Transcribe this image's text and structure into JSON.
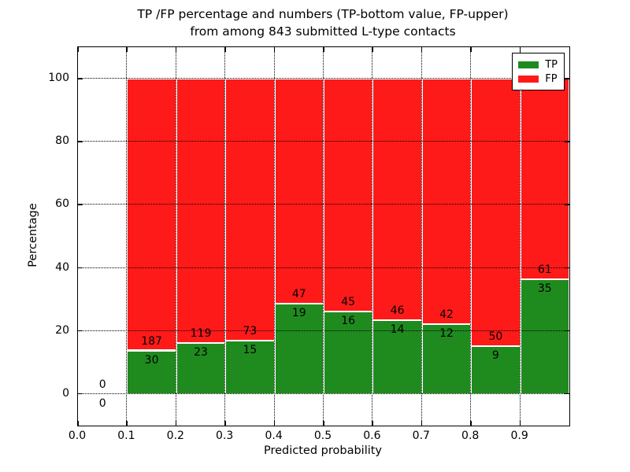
{
  "title": {
    "line1": "TP /FP percentage and numbers (TP-bottom value, FP-upper)",
    "line2": "from among 843 submitted L-type contacts"
  },
  "chart_data": {
    "type": "bar",
    "stacked": true,
    "normalized_to_percent": true,
    "title": "TP /FP percentage and numbers (TP-bottom value, FP-upper) from among 843 submitted L-type contacts",
    "xlabel": "Predicted probability",
    "ylabel": "Percentage",
    "total_contacts": 843,
    "bin_edges": [
      0.0,
      0.1,
      0.2,
      0.3,
      0.4,
      0.5,
      0.6,
      0.7,
      0.8,
      0.9,
      1.0
    ],
    "series": [
      {
        "name": "TP",
        "color": "#1f8b1f",
        "counts": [
          0,
          30,
          23,
          15,
          19,
          16,
          14,
          12,
          9,
          35
        ]
      },
      {
        "name": "FP",
        "color": "#ff1a1a",
        "counts": [
          0,
          187,
          119,
          73,
          47,
          45,
          46,
          42,
          50,
          61
        ]
      }
    ],
    "xlim": [
      0.0,
      1.0
    ],
    "ylim": [
      -10,
      110
    ],
    "xtick_labels": [
      "0.0",
      "0.1",
      "0.2",
      "0.3",
      "0.4",
      "0.5",
      "0.6",
      "0.7",
      "0.8",
      "0.9"
    ],
    "ytick_values": [
      0,
      20,
      40,
      60,
      80,
      100
    ],
    "grid": {
      "style": "dotted",
      "color": "#000000",
      "x": true,
      "y": true
    },
    "legend": {
      "position": "upper right",
      "entries": [
        {
          "label": "TP",
          "color": "#1f8b1f"
        },
        {
          "label": "FP",
          "color": "#ff1a1a"
        }
      ]
    }
  }
}
